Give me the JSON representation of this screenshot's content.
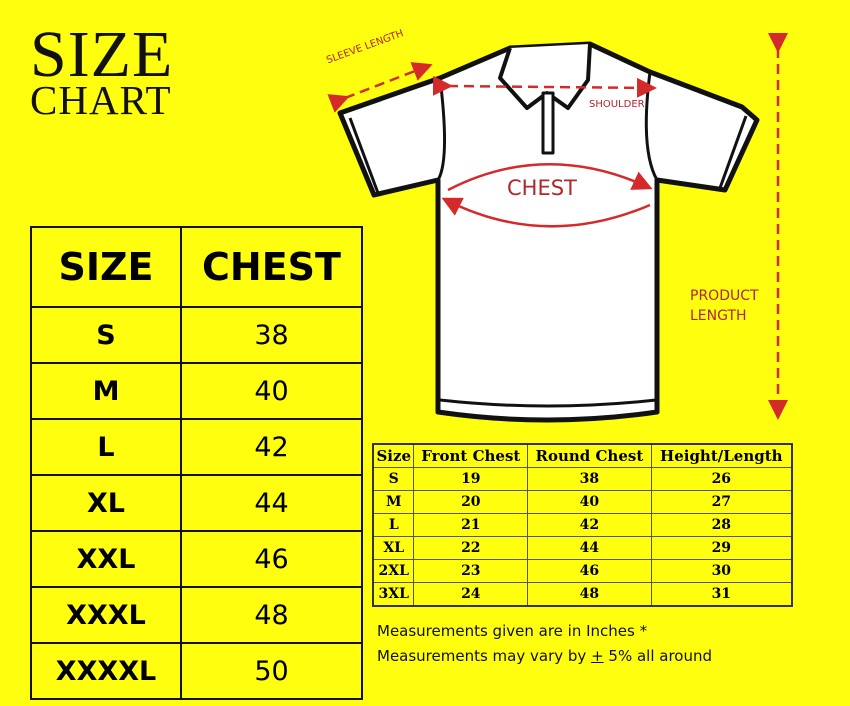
{
  "title": {
    "line1": "SIZE",
    "line2": "CHART"
  },
  "colors": {
    "background": "#fefe0e",
    "measure_red": "#b0262a",
    "outline": "#111111"
  },
  "diagram": {
    "sleeve_length": "SLEEVE LENGTH",
    "shoulder": "SHOULDER",
    "chest": "CHEST",
    "product_length_1": "PRODUCT",
    "product_length_2": "LENGTH"
  },
  "chest_table": {
    "headers": [
      "SIZE",
      "CHEST"
    ],
    "rows": [
      [
        "S",
        "38"
      ],
      [
        "M",
        "40"
      ],
      [
        "L",
        "42"
      ],
      [
        "XL",
        "44"
      ],
      [
        "XXL",
        "46"
      ],
      [
        "XXXL",
        "48"
      ],
      [
        "XXXXL",
        "50"
      ]
    ]
  },
  "detail_table": {
    "headers": [
      "Size",
      "Front Chest",
      "Round Chest",
      "Height/Length"
    ],
    "rows": [
      [
        "S",
        "19",
        "38",
        "26"
      ],
      [
        "M",
        "20",
        "40",
        "27"
      ],
      [
        "L",
        "21",
        "42",
        "28"
      ],
      [
        "XL",
        "22",
        "44",
        "29"
      ],
      [
        "2XL",
        "23",
        "46",
        "30"
      ],
      [
        "3XL",
        "24",
        "48",
        "31"
      ]
    ]
  },
  "notes": {
    "line1": "Measurements given are in Inches *",
    "line2_prefix": "Measurements may vary by ",
    "line2_pm": "+",
    "line2_suffix": " 5% all around"
  }
}
